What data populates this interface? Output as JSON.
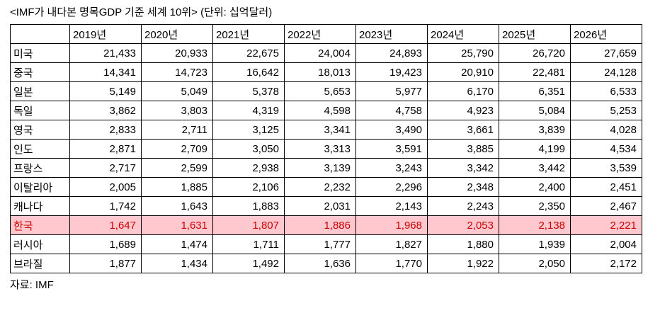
{
  "title": "<IMF가 내다본 명목GDP 기준 세계 10위> (단위: 십억달러)",
  "source": "자료: IMF",
  "colors": {
    "highlight_bg": "#ffc7ce",
    "highlight_text": "#cc0000",
    "border": "#000000",
    "background": "#ffffff"
  },
  "chart_data": {
    "type": "table",
    "title": "<IMF가 내다본 명목GDP 기준 세계 10위>",
    "unit": "십억달러",
    "columns": [
      "",
      "2019년",
      "2020년",
      "2021년",
      "2022년",
      "2023년",
      "2024년",
      "2025년",
      "2026년"
    ],
    "rows": [
      {
        "country": "미국",
        "values": [
          "21,433",
          "20,933",
          "22,675",
          "24,004",
          "24,893",
          "25,790",
          "26,720",
          "27,659"
        ],
        "highlighted": false
      },
      {
        "country": "중국",
        "values": [
          "14,341",
          "14,723",
          "16,642",
          "18,013",
          "19,423",
          "20,910",
          "22,481",
          "24,128"
        ],
        "highlighted": false
      },
      {
        "country": "일본",
        "values": [
          "5,149",
          "5,049",
          "5,378",
          "5,653",
          "5,977",
          "6,170",
          "6,351",
          "6,533"
        ],
        "highlighted": false
      },
      {
        "country": "독일",
        "values": [
          "3,862",
          "3,803",
          "4,319",
          "4,598",
          "4,758",
          "4,923",
          "5,084",
          "5,253"
        ],
        "highlighted": false
      },
      {
        "country": "영국",
        "values": [
          "2,833",
          "2,711",
          "3,125",
          "3,341",
          "3,490",
          "3,661",
          "3,839",
          "4,028"
        ],
        "highlighted": false
      },
      {
        "country": "인도",
        "values": [
          "2,871",
          "2,709",
          "3,050",
          "3,313",
          "3,591",
          "3,885",
          "4,199",
          "4,534"
        ],
        "highlighted": false
      },
      {
        "country": "프랑스",
        "values": [
          "2,717",
          "2,599",
          "2,938",
          "3,139",
          "3,243",
          "3,342",
          "3,442",
          "3,539"
        ],
        "highlighted": false
      },
      {
        "country": "이탈리아",
        "values": [
          "2,005",
          "1,885",
          "2,106",
          "2,232",
          "2,296",
          "2,348",
          "2,400",
          "2,451"
        ],
        "highlighted": false
      },
      {
        "country": "캐나다",
        "values": [
          "1,742",
          "1,643",
          "1,883",
          "2,031",
          "2,143",
          "2,243",
          "2,350",
          "2,467"
        ],
        "highlighted": false
      },
      {
        "country": "한국",
        "values": [
          "1,647",
          "1,631",
          "1,807",
          "1,886",
          "1,968",
          "2,053",
          "2,138",
          "2,221"
        ],
        "highlighted": true
      },
      {
        "country": "러시아",
        "values": [
          "1,689",
          "1,474",
          "1,711",
          "1,777",
          "1,827",
          "1,880",
          "1,939",
          "2,004"
        ],
        "highlighted": false
      },
      {
        "country": "브라질",
        "values": [
          "1,877",
          "1,434",
          "1,492",
          "1,636",
          "1,770",
          "1,922",
          "2,050",
          "2,172"
        ],
        "highlighted": false
      }
    ],
    "source": "자료: IMF"
  }
}
